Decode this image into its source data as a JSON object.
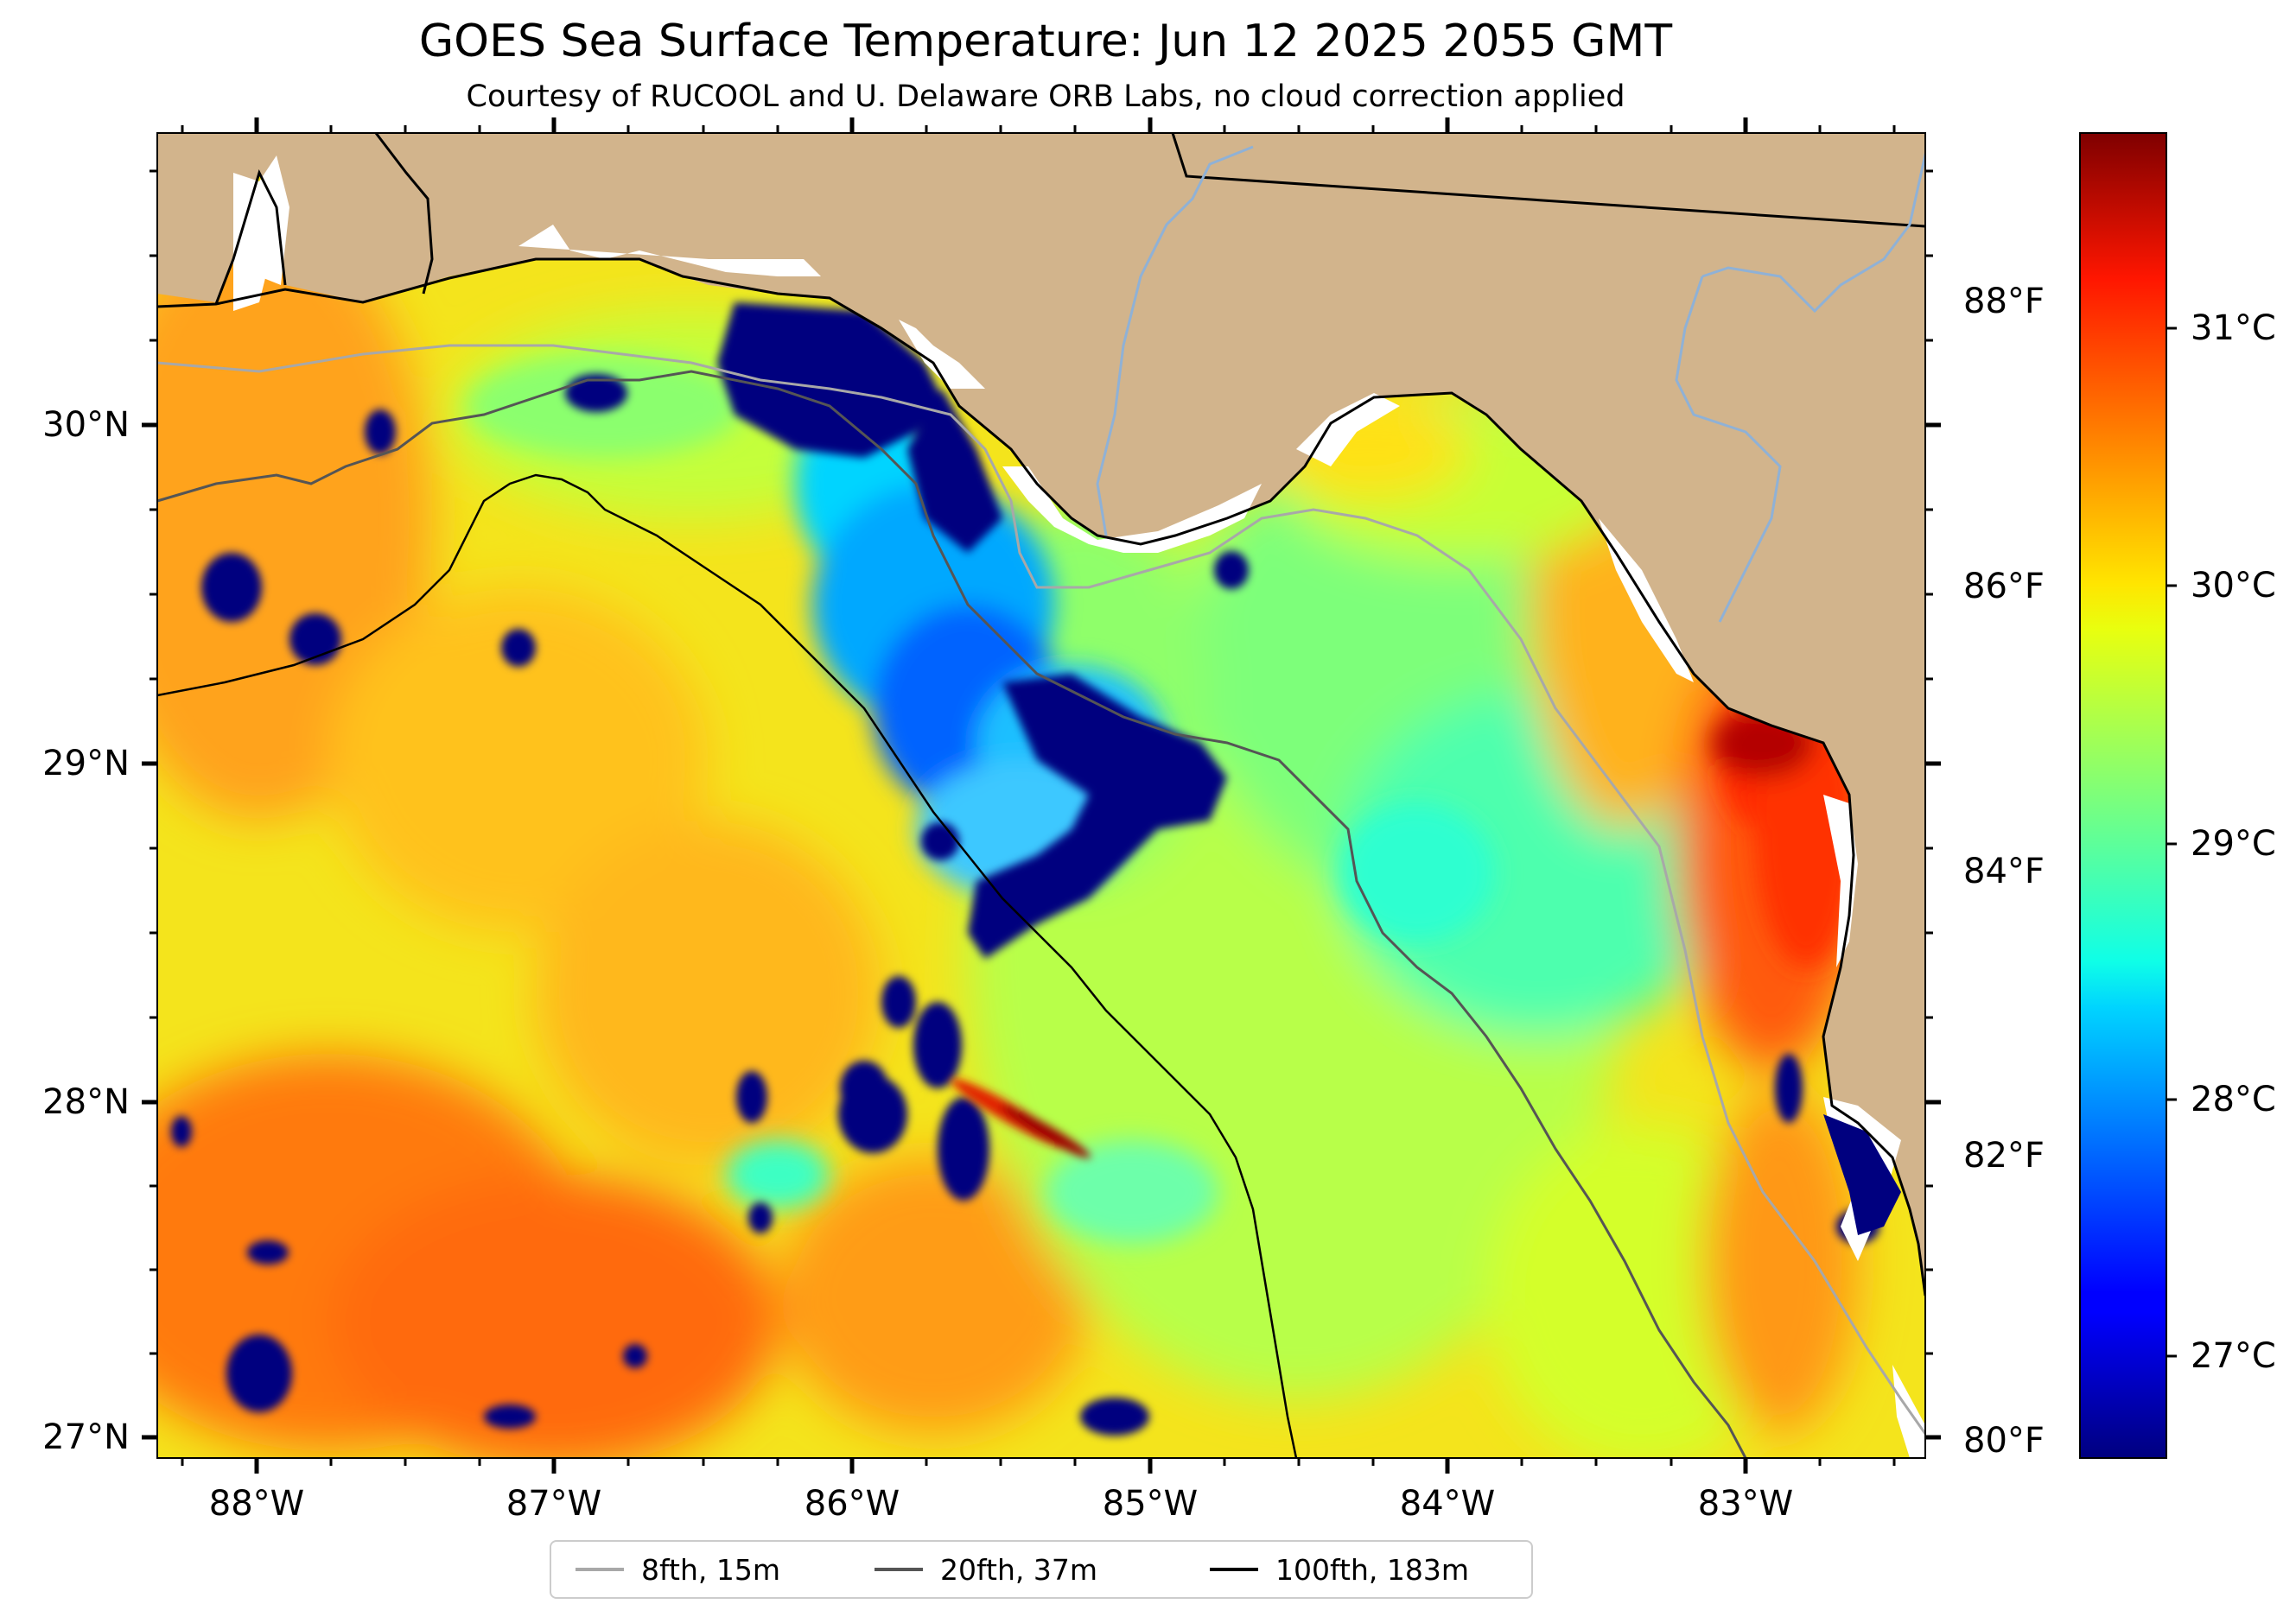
{
  "title": "GOES Sea Surface Temperature: Jun 12 2025 2055 GMT",
  "subtitle": "Courtesy of RUCOOL and U. Delaware ORB Labs, no cloud correction applied",
  "map": {
    "lon_range": [
      -88.33,
      -82.4
    ],
    "lat_range": [
      26.93,
      30.86
    ],
    "latitude_labels": [
      "30°N",
      "29°N",
      "28°N",
      "27°N"
    ],
    "longitude_labels": [
      "88°W",
      "87°W",
      "86°W",
      "85°W",
      "84°W",
      "83°W"
    ],
    "fahrenheit_labels": [
      "88°F",
      "86°F",
      "84°F",
      "82°F",
      "80°F"
    ],
    "colors": {
      "land": "#d2b48c",
      "no_data": "#ffffff",
      "coastline": "#000000",
      "rivers": "#8fb1d6"
    }
  },
  "colorbar": {
    "colormap": "jet",
    "range_c": [
      26.6,
      31.7
    ],
    "labels": [
      "31°C",
      "30°C",
      "29°C",
      "28°C",
      "27°C"
    ]
  },
  "legend": {
    "items": [
      {
        "label": "8fth, 15m",
        "color": "#a8a8a8"
      },
      {
        "label": "20fth, 37m",
        "color": "#555555"
      },
      {
        "label": "100fth, 183m",
        "color": "#000000"
      }
    ]
  }
}
